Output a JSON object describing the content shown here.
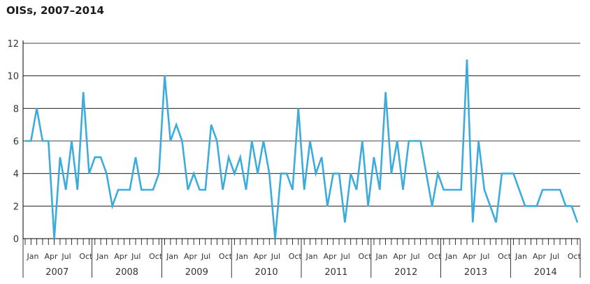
{
  "chart_data": {
    "type": "line",
    "title": "OISs, 2007–2014",
    "xlabel": "",
    "ylabel": "",
    "ylim": [
      0,
      12
    ],
    "yticks": [
      0,
      2,
      4,
      6,
      8,
      10,
      12
    ],
    "grid": true,
    "legend": "none",
    "colors": {
      "line": "#3BACDC",
      "grid": "#000000"
    },
    "month_labels": [
      "Jan",
      "Apr",
      "Jul",
      "Oct"
    ],
    "years": [
      "2007",
      "2008",
      "2009",
      "2010",
      "2011",
      "2012",
      "2013",
      "2014"
    ],
    "series": [
      {
        "values": [
          6,
          6,
          8,
          6,
          6,
          0,
          5,
          3,
          6,
          3,
          9,
          4,
          5,
          5,
          4,
          2,
          3,
          3,
          3,
          5,
          3,
          3,
          3,
          4,
          10,
          6,
          7,
          6,
          3,
          4,
          3,
          3,
          7,
          6,
          3,
          5,
          4,
          5,
          3,
          6,
          4,
          6,
          4,
          0,
          4,
          4,
          3,
          8,
          3,
          6,
          4,
          5,
          2,
          4,
          4,
          1,
          4,
          3,
          6,
          2,
          5,
          3,
          9,
          4,
          6,
          3,
          6,
          6,
          6,
          4,
          2,
          4,
          3,
          3,
          3,
          3,
          11,
          1,
          6,
          3,
          2,
          1,
          4,
          4,
          4,
          3,
          2,
          2,
          2,
          3,
          3,
          3,
          3,
          2,
          2,
          1
        ]
      }
    ]
  }
}
